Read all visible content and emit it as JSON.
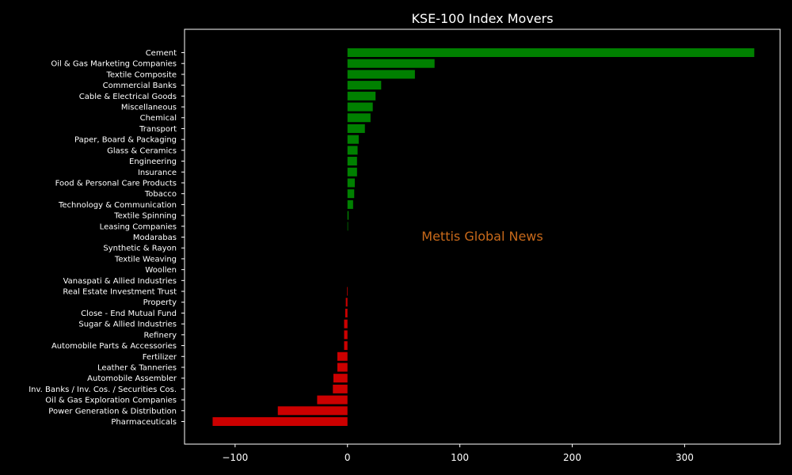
{
  "chart_data": {
    "type": "bar",
    "orientation": "horizontal",
    "title": "KSE-100 Index Movers",
    "xlabel": "",
    "ylabel": "",
    "xlim": [
      -145,
      385
    ],
    "xticks": [
      -100,
      0,
      100,
      200,
      300
    ],
    "xtick_labels": [
      "−100",
      "0",
      "100",
      "200",
      "300"
    ],
    "grid": false,
    "watermark": "Mettis Global News",
    "colors": {
      "positive": "#008000",
      "negative": "#cc0000",
      "background": "#000000",
      "axis": "#ffffff",
      "watermark": "#c8691a"
    },
    "categories": [
      "Cement",
      "Oil & Gas Marketing Companies",
      "Textile Composite",
      "Commercial Banks",
      "Cable & Electrical Goods",
      "Miscellaneous",
      "Chemical",
      "Transport",
      "Paper, Board & Packaging",
      "Glass & Ceramics",
      "Engineering",
      "Insurance",
      "Food & Personal Care Products",
      "Tobacco",
      "Technology & Communication",
      "Textile Spinning",
      "Leasing Companies",
      "Modarabas",
      "Synthetic & Rayon",
      "Textile Weaving",
      "Woollen",
      "Vanaspati & Allied Industries",
      "Real Estate Investment Trust",
      "Property",
      "Close - End Mutual Fund",
      "Sugar & Allied Industries",
      "Refinery",
      "Automobile Parts & Accessories",
      "Fertilizer",
      "Leather & Tanneries",
      "Automobile Assembler",
      "Inv. Banks / Inv. Cos. / Securities Cos.",
      "Oil & Gas Exploration Companies",
      "Power Generation & Distribution",
      "Pharmaceuticals"
    ],
    "values": [
      362,
      77.5,
      60,
      30,
      25,
      22.5,
      20.5,
      15.5,
      10,
      9,
      8.5,
      8.5,
      6.5,
      6,
      5,
      1,
      0.5,
      0,
      0,
      0,
      0,
      0,
      -0.5,
      -1.5,
      -2,
      -3,
      -3,
      -3,
      -9,
      -9,
      -12.5,
      -13,
      -27,
      -62,
      -120
    ]
  }
}
